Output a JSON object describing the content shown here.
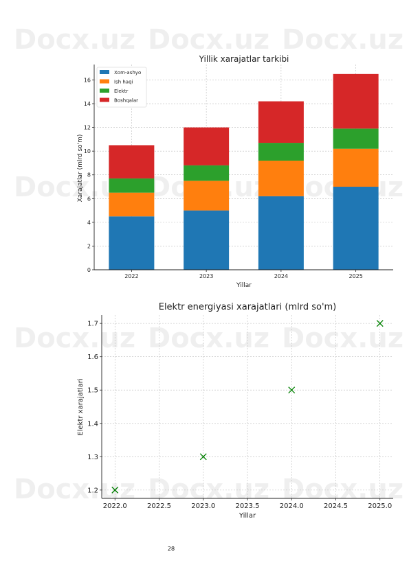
{
  "watermark_text": "Docx.uz",
  "page_number": "28",
  "chart_data": [
    {
      "type": "bar",
      "stacked": true,
      "title": "Yillik xarajatlar tarkibi",
      "xlabel": "Yillar",
      "ylabel": "Xarajatlar (mlrd so'm)",
      "categories": [
        "2022",
        "2023",
        "2024",
        "2025"
      ],
      "series": [
        {
          "name": "Xom-ashyo",
          "color": "#1f77b4",
          "values": [
            4.5,
            5.0,
            6.2,
            7.0
          ]
        },
        {
          "name": "Ish haqi",
          "color": "#ff7f0e",
          "values": [
            2.0,
            2.5,
            3.0,
            3.2
          ]
        },
        {
          "name": "Elektr",
          "color": "#2ca02c",
          "values": [
            1.2,
            1.3,
            1.5,
            1.7
          ]
        },
        {
          "name": "Boshqalar",
          "color": "#d62728",
          "values": [
            2.8,
            3.2,
            3.5,
            4.6
          ]
        }
      ],
      "ylim": [
        0,
        17.3
      ],
      "yticks": [
        0,
        2,
        4,
        6,
        8,
        10,
        12,
        14,
        16
      ],
      "grid": true,
      "legend": "top-left"
    },
    {
      "type": "scatter",
      "title": "Elektr energiyasi xarajatlari (mlrd so'm)",
      "xlabel": "Yillar",
      "ylabel": "Elektr xarajatlari",
      "marker": "x",
      "color": "#008000",
      "x": [
        2022,
        2023,
        2024,
        2025
      ],
      "y": [
        1.2,
        1.3,
        1.5,
        1.7
      ],
      "xlim": [
        2021.85,
        2025.15
      ],
      "ylim": [
        1.175,
        1.725
      ],
      "xticks": [
        "2022.0",
        "2022.5",
        "2023.0",
        "2023.5",
        "2024.0",
        "2024.5",
        "2025.0"
      ],
      "yticks": [
        "1.2",
        "1.3",
        "1.4",
        "1.5",
        "1.6",
        "1.7"
      ],
      "grid": true
    }
  ]
}
